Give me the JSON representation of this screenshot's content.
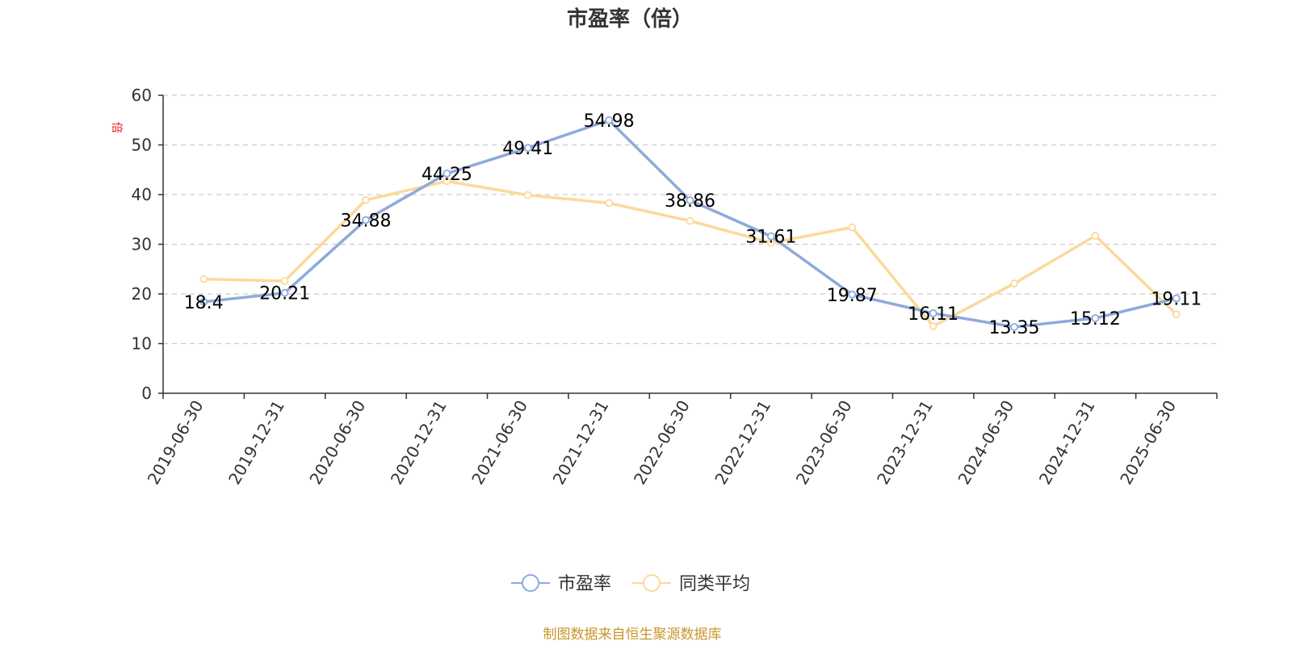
{
  "chart_data": {
    "type": "line",
    "title": "市盈率（倍）",
    "ylabel": "倍",
    "ylim": [
      0,
      60
    ],
    "yticks": [
      0,
      10,
      20,
      30,
      40,
      50,
      60
    ],
    "grid": true,
    "legend_position": "bottom",
    "categories": [
      "2019-06-30",
      "2019-12-31",
      "2020-06-30",
      "2020-12-31",
      "2021-06-30",
      "2021-12-31",
      "2022-06-30",
      "2022-12-31",
      "2023-06-30",
      "2023-12-31",
      "2024-06-30",
      "2024-12-31",
      "2025-06-30"
    ],
    "series": [
      {
        "name": "市盈率",
        "color": "#8eaadb",
        "values": [
          18.4,
          20.21,
          34.88,
          44.25,
          49.41,
          54.98,
          38.86,
          31.61,
          19.87,
          16.11,
          13.35,
          15.12,
          19.11
        ],
        "show_labels": true
      },
      {
        "name": "同类平均",
        "color": "#fcd99b",
        "values": [
          23.0,
          22.6,
          38.9,
          42.7,
          39.9,
          38.3,
          34.7,
          30.3,
          33.4,
          13.5,
          22.1,
          31.7,
          15.9
        ],
        "show_labels": false
      }
    ],
    "ylabel_color": "#e8151b"
  },
  "footer": {
    "source": "制图数据来自恒生聚源数据库",
    "source_color": "#c8962a"
  }
}
